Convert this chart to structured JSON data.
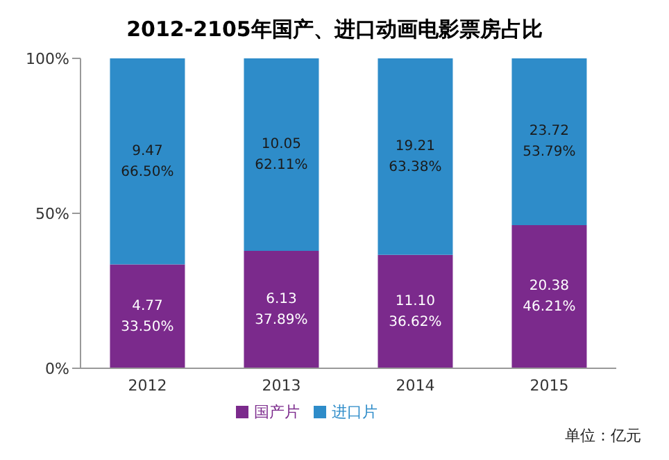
{
  "chart_data": {
    "type": "bar",
    "title": "2012-2105年国产、进口动画电影票房占比",
    "categories": [
      "2012",
      "2013",
      "2014",
      "2015"
    ],
    "stacked": true,
    "series": [
      {
        "name": "国产片",
        "color": "#7b2a8c",
        "values": [
          33.5,
          37.89,
          36.62,
          46.21
        ],
        "value_labels": [
          "4.77\n33.50%",
          "6.13\n37.89%",
          "11.10\n36.62%",
          "20.38\n46.21%"
        ]
      },
      {
        "name": "进口片",
        "color": "#2e8cc9",
        "values": [
          66.5,
          62.11,
          63.38,
          53.79
        ],
        "value_labels": [
          "9.47\n66.50%",
          "10.05\n62.11%",
          "19.21\n63.38%",
          "23.72\n53.79%"
        ]
      }
    ],
    "ylim": [
      0,
      100
    ],
    "yticks": [
      {
        "value": 0,
        "label": "0%"
      },
      {
        "value": 50,
        "label": "50%"
      },
      {
        "value": 100,
        "label": "100%"
      }
    ],
    "grid": false,
    "legend": "bottom",
    "annotations": [
      "单位：亿元"
    ]
  }
}
